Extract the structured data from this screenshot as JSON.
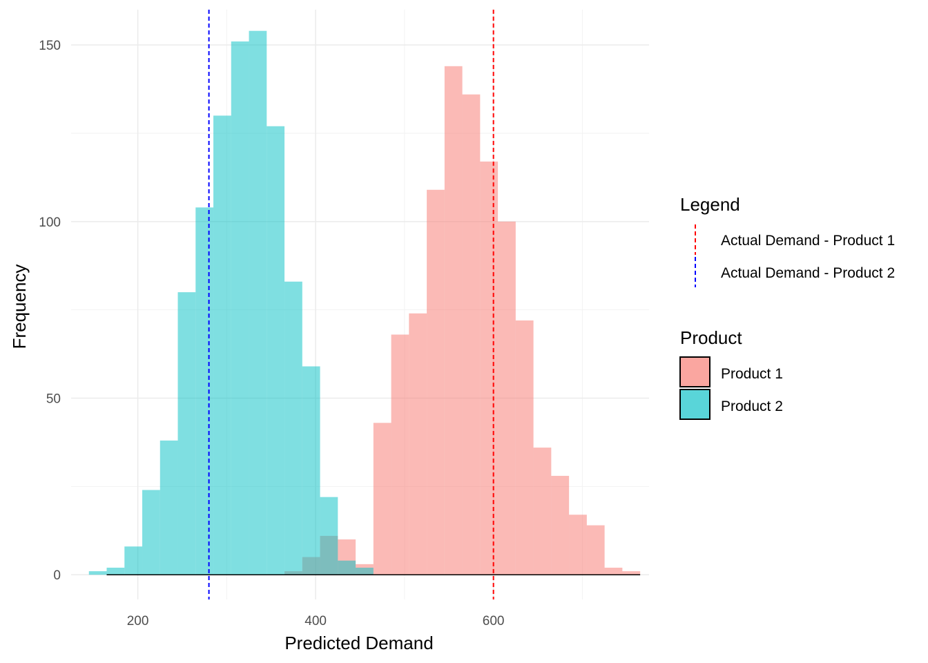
{
  "chart_data": {
    "type": "histogram",
    "xlabel": "Predicted Demand",
    "ylabel": "Frequency",
    "xlim": [
      125,
      775
    ],
    "ylim": [
      -7,
      160
    ],
    "x_ticks": [
      200,
      400,
      600
    ],
    "y_ticks": [
      0,
      50,
      100,
      150
    ],
    "grid": true,
    "bin_width": 20,
    "series": [
      {
        "name": "Product 1",
        "color": "#F8766D",
        "opacity": 0.5,
        "bins": [
          {
            "x0": 365,
            "x1": 385,
            "count": 1
          },
          {
            "x0": 385,
            "x1": 405,
            "count": 5
          },
          {
            "x0": 405,
            "x1": 425,
            "count": 11
          },
          {
            "x0": 425,
            "x1": 445,
            "count": 10
          },
          {
            "x0": 445,
            "x1": 465,
            "count": 3
          },
          {
            "x0": 465,
            "x1": 485,
            "count": 43
          },
          {
            "x0": 485,
            "x1": 505,
            "count": 68
          },
          {
            "x0": 505,
            "x1": 525,
            "count": 74
          },
          {
            "x0": 525,
            "x1": 545,
            "count": 109
          },
          {
            "x0": 545,
            "x1": 565,
            "count": 144
          },
          {
            "x0": 565,
            "x1": 585,
            "count": 136
          },
          {
            "x0": 585,
            "x1": 605,
            "count": 117
          },
          {
            "x0": 605,
            "x1": 625,
            "count": 100
          },
          {
            "x0": 625,
            "x1": 645,
            "count": 72
          },
          {
            "x0": 645,
            "x1": 665,
            "count": 36
          },
          {
            "x0": 665,
            "x1": 685,
            "count": 28
          },
          {
            "x0": 685,
            "x1": 705,
            "count": 17
          },
          {
            "x0": 705,
            "x1": 725,
            "count": 14
          },
          {
            "x0": 725,
            "x1": 745,
            "count": 2
          },
          {
            "x0": 745,
            "x1": 765,
            "count": 1
          }
        ]
      },
      {
        "name": "Product 2",
        "color": "#00BFC4",
        "opacity": 0.5,
        "bins": [
          {
            "x0": 145,
            "x1": 165,
            "count": 1
          },
          {
            "x0": 165,
            "x1": 185,
            "count": 2
          },
          {
            "x0": 185,
            "x1": 205,
            "count": 8
          },
          {
            "x0": 205,
            "x1": 225,
            "count": 24
          },
          {
            "x0": 225,
            "x1": 245,
            "count": 38
          },
          {
            "x0": 245,
            "x1": 265,
            "count": 80
          },
          {
            "x0": 265,
            "x1": 285,
            "count": 104
          },
          {
            "x0": 285,
            "x1": 305,
            "count": 130
          },
          {
            "x0": 305,
            "x1": 325,
            "count": 151
          },
          {
            "x0": 325,
            "x1": 345,
            "count": 154
          },
          {
            "x0": 345,
            "x1": 365,
            "count": 127
          },
          {
            "x0": 365,
            "x1": 385,
            "count": 83
          },
          {
            "x0": 385,
            "x1": 405,
            "count": 59
          },
          {
            "x0": 405,
            "x1": 425,
            "count": 22
          },
          {
            "x0": 425,
            "x1": 445,
            "count": 4
          },
          {
            "x0": 445,
            "x1": 465,
            "count": 2
          }
        ]
      }
    ],
    "vlines": [
      {
        "name": "Actual Demand - Product 1",
        "x": 600,
        "color": "#FF0000",
        "style": "dashed"
      },
      {
        "name": "Actual Demand - Product 2",
        "x": 280,
        "color": "#0000FF",
        "style": "dashed"
      }
    ],
    "legends": [
      {
        "title": "Legend",
        "kind": "line",
        "items": [
          {
            "label": "Actual Demand - Product 1",
            "color": "#FF0000"
          },
          {
            "label": "Actual Demand - Product 2",
            "color": "#0000FF"
          }
        ]
      },
      {
        "title": "Product",
        "kind": "fill",
        "items": [
          {
            "label": "Product 1",
            "color": "#F8766D"
          },
          {
            "label": "Product 2",
            "color": "#00BFC4"
          }
        ]
      }
    ],
    "legend_position": "right"
  }
}
